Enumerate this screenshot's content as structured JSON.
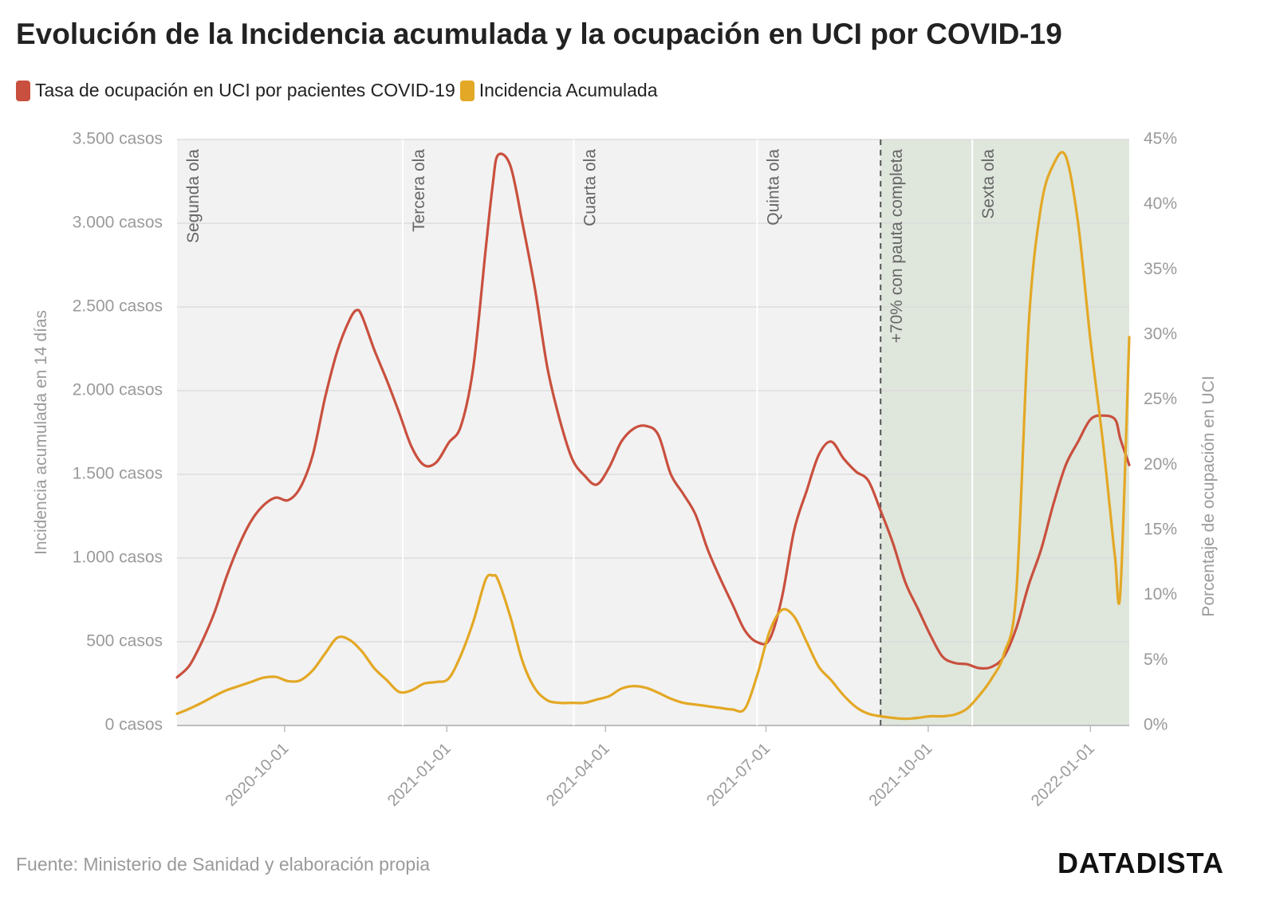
{
  "title": "Evolución de la Incidencia acumulada y la ocupación en UCI por COVID-19",
  "legend": [
    {
      "label": "Tasa de ocupación en UCI por pacientes COVID-19",
      "color": "#c9503e"
    },
    {
      "label": "Incidencia Acumulada",
      "color": "#e3a825"
    }
  ],
  "source": "Fuente: Ministerio de Sanidad y elaboración propia",
  "logo": "DATADISTA",
  "chart_data": {
    "type": "line",
    "x_range": [
      "2020-08-01",
      "2022-01-23"
    ],
    "left_axis": {
      "label": "Incidencia acumulada en 14 días",
      "ylim": [
        0,
        3500
      ],
      "ticks": [
        0,
        500,
        1000,
        1500,
        2000,
        2500,
        3000,
        3500
      ],
      "tick_labels": [
        "0 casos",
        "500 casos",
        "1.000 casos",
        "1.500 casos",
        "2.000 casos",
        "2.500 casos",
        "3.000 casos",
        "3.500 casos"
      ]
    },
    "right_axis": {
      "label": "Porcentaje de ocupación en UCI",
      "ylim": [
        0,
        45
      ],
      "ticks": [
        0,
        5,
        10,
        15,
        20,
        25,
        30,
        35,
        40,
        45
      ],
      "tick_labels": [
        "0%",
        "5%",
        "10%",
        "15%",
        "20%",
        "25%",
        "30%",
        "35%",
        "40%",
        "45%"
      ]
    },
    "x_ticks": [
      "2020-10-01",
      "2021-01-01",
      "2021-04-01",
      "2021-07-01",
      "2021-10-01",
      "2022-01-01"
    ],
    "annotations": [
      {
        "date": "2020-08-01",
        "label": "Segunda ola",
        "style": "solid"
      },
      {
        "date": "2020-12-07",
        "label": "Tercera ola",
        "style": "solid"
      },
      {
        "date": "2021-03-14",
        "label": "Cuarta ola",
        "style": "solid"
      },
      {
        "date": "2021-06-26",
        "label": "Quinta ola",
        "style": "solid"
      },
      {
        "date": "2021-09-04",
        "label": "+70% con pauta completa",
        "style": "dashed"
      },
      {
        "date": "2021-10-26",
        "label": "Sexta ola",
        "style": "solid"
      }
    ],
    "shaded_region": {
      "from": "2021-09-04",
      "to": "2022-01-23"
    },
    "grid": true,
    "series": [
      {
        "name": "Tasa de ocupación en UCI por pacientes COVID-19",
        "axis": "right",
        "color": "#c9503e",
        "x": [
          "2020-08-01",
          "2020-08-08",
          "2020-08-15",
          "2020-08-22",
          "2020-08-29",
          "2020-09-05",
          "2020-09-12",
          "2020-09-19",
          "2020-09-26",
          "2020-10-03",
          "2020-10-10",
          "2020-10-17",
          "2020-10-24",
          "2020-10-31",
          "2020-11-07",
          "2020-11-11",
          "2020-11-14",
          "2020-11-21",
          "2020-11-28",
          "2020-12-05",
          "2020-12-12",
          "2020-12-19",
          "2020-12-26",
          "2021-01-02",
          "2021-01-09",
          "2021-01-16",
          "2021-01-23",
          "2021-01-27",
          "2021-01-30",
          "2021-02-06",
          "2021-02-13",
          "2021-02-20",
          "2021-02-27",
          "2021-03-06",
          "2021-03-13",
          "2021-03-20",
          "2021-03-27",
          "2021-04-03",
          "2021-04-10",
          "2021-04-17",
          "2021-04-24",
          "2021-05-01",
          "2021-05-08",
          "2021-05-15",
          "2021-05-22",
          "2021-05-29",
          "2021-06-05",
          "2021-06-12",
          "2021-06-19",
          "2021-06-26",
          "2021-07-03",
          "2021-07-10",
          "2021-07-17",
          "2021-07-24",
          "2021-07-31",
          "2021-08-07",
          "2021-08-14",
          "2021-08-21",
          "2021-08-28",
          "2021-09-04",
          "2021-09-11",
          "2021-09-18",
          "2021-09-25",
          "2021-10-02",
          "2021-10-09",
          "2021-10-16",
          "2021-10-23",
          "2021-10-30",
          "2021-11-06",
          "2021-11-13",
          "2021-11-20",
          "2021-11-27",
          "2021-12-04",
          "2021-12-11",
          "2021-12-18",
          "2021-12-25",
          "2022-01-01",
          "2022-01-08",
          "2022-01-15",
          "2022-01-18",
          "2022-01-23"
        ],
        "y": [
          3.7,
          4.6,
          6.4,
          8.6,
          11.4,
          13.8,
          15.7,
          16.9,
          17.5,
          17.3,
          18.3,
          20.8,
          25.2,
          28.8,
          31.2,
          31.9,
          31.4,
          28.8,
          26.5,
          24.0,
          21.4,
          20.0,
          20.2,
          21.7,
          23.0,
          27.5,
          36.5,
          41.5,
          43.8,
          43.0,
          38.5,
          33.5,
          27.5,
          23.5,
          20.5,
          19.2,
          18.5,
          19.8,
          21.8,
          22.8,
          23.0,
          22.3,
          19.3,
          17.8,
          16.2,
          13.5,
          11.3,
          9.3,
          7.3,
          6.4,
          6.6,
          9.8,
          15.0,
          18.0,
          20.8,
          21.8,
          20.5,
          19.5,
          18.8,
          16.5,
          14.0,
          11.0,
          9.0,
          7.0,
          5.3,
          4.8,
          4.7,
          4.4,
          4.5,
          5.3,
          7.5,
          10.8,
          13.5,
          17.0,
          20.0,
          21.8,
          23.5,
          23.8,
          23.5,
          22.0,
          20.0
        ]
      },
      {
        "name": "Incidencia Acumulada",
        "axis": "left",
        "color": "#e3a825",
        "x": [
          "2020-08-01",
          "2020-08-08",
          "2020-08-15",
          "2020-08-22",
          "2020-08-29",
          "2020-09-05",
          "2020-09-12",
          "2020-09-19",
          "2020-09-26",
          "2020-10-03",
          "2020-10-10",
          "2020-10-17",
          "2020-10-24",
          "2020-10-31",
          "2020-11-07",
          "2020-11-14",
          "2020-11-21",
          "2020-11-28",
          "2020-12-05",
          "2020-12-12",
          "2020-12-19",
          "2020-12-26",
          "2021-01-02",
          "2021-01-09",
          "2021-01-16",
          "2021-01-23",
          "2021-01-27",
          "2021-01-30",
          "2021-02-06",
          "2021-02-13",
          "2021-02-20",
          "2021-02-27",
          "2021-03-06",
          "2021-03-13",
          "2021-03-20",
          "2021-03-27",
          "2021-04-03",
          "2021-04-10",
          "2021-04-17",
          "2021-04-24",
          "2021-05-01",
          "2021-05-08",
          "2021-05-15",
          "2021-05-22",
          "2021-05-29",
          "2021-06-05",
          "2021-06-12",
          "2021-06-19",
          "2021-06-26",
          "2021-07-03",
          "2021-07-10",
          "2021-07-17",
          "2021-07-24",
          "2021-07-31",
          "2021-08-07",
          "2021-08-14",
          "2021-08-21",
          "2021-08-28",
          "2021-09-04",
          "2021-09-11",
          "2021-09-18",
          "2021-09-25",
          "2021-10-02",
          "2021-10-09",
          "2021-10-16",
          "2021-10-23",
          "2021-10-30",
          "2021-11-06",
          "2021-11-13",
          "2021-11-20",
          "2021-11-27",
          "2021-12-04",
          "2021-12-11",
          "2021-12-18",
          "2021-12-25",
          "2022-01-01",
          "2022-01-08",
          "2022-01-12",
          "2022-01-15",
          "2022-01-18",
          "2022-01-23"
        ],
        "y": [
          70,
          100,
          135,
          175,
          210,
          235,
          260,
          285,
          290,
          265,
          270,
          330,
          430,
          525,
          510,
          440,
          340,
          270,
          200,
          210,
          250,
          260,
          280,
          420,
          620,
          870,
          895,
          870,
          650,
          380,
          220,
          150,
          135,
          135,
          135,
          155,
          175,
          220,
          235,
          225,
          195,
          160,
          135,
          125,
          115,
          105,
          95,
          100,
          300,
          560,
          690,
          650,
          500,
          350,
          270,
          180,
          110,
          70,
          55,
          45,
          40,
          45,
          55,
          55,
          65,
          100,
          180,
          280,
          430,
          800,
          2400,
          3100,
          3350,
          3400,
          3000,
          2300,
          1700,
          1300,
          1000,
          800,
          2320
        ]
      }
    ]
  }
}
